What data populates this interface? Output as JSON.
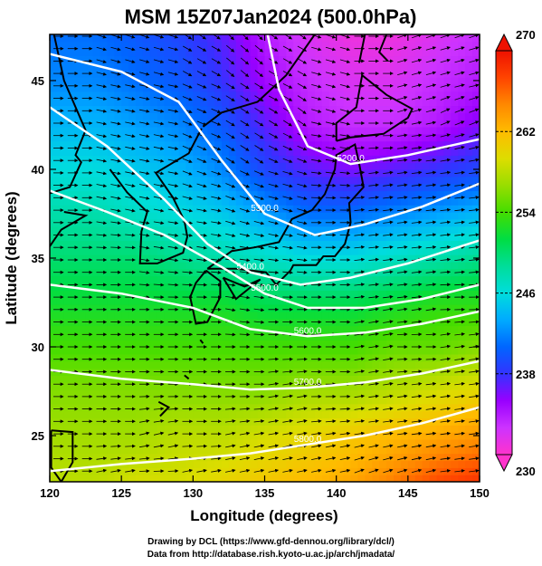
{
  "chart_data": {
    "type": "heatmap",
    "title": "MSM 15Z07Jan2024 (500.0hPa)",
    "xlabel": "Longitude (degrees)",
    "ylabel": "Latitude  (degrees)",
    "xlim": [
      120,
      150
    ],
    "ylim": [
      22.4,
      47.6
    ],
    "x_ticks": [
      120,
      125,
      130,
      135,
      140,
      145,
      150
    ],
    "y_ticks": [
      25,
      30,
      35,
      40,
      45
    ],
    "colorbar": {
      "min": 230,
      "max": 270,
      "ticks": [
        230,
        238,
        246,
        254,
        262,
        270
      ],
      "colors": [
        "#ff33cc",
        "#cc33ff",
        "#9900ff",
        "#3333ff",
        "#0066ff",
        "#00aaff",
        "#00dddd",
        "#00dd99",
        "#00dd44",
        "#44dd00",
        "#99dd00",
        "#dddd00",
        "#ffbb00",
        "#ff8800",
        "#ff4400",
        "#ee1100"
      ]
    },
    "temperature_field_K": [
      {
        "lat": 47.5,
        "values": [
          241,
          241,
          240,
          239,
          237,
          234,
          232,
          231,
          231,
          232,
          233
        ]
      },
      {
        "lat": 45,
        "values": [
          242,
          242,
          241,
          240,
          238,
          235,
          233,
          232,
          232,
          233,
          234
        ]
      },
      {
        "lat": 42.5,
        "values": [
          244,
          244,
          243,
          242,
          240,
          237,
          234,
          233,
          233,
          234,
          236
        ]
      },
      {
        "lat": 40,
        "values": [
          246,
          246,
          245,
          244,
          242,
          239,
          237,
          236,
          237,
          238,
          239
        ]
      },
      {
        "lat": 37.5,
        "values": [
          248,
          248,
          247,
          246,
          245,
          243,
          241,
          241,
          242,
          243,
          244
        ]
      },
      {
        "lat": 35,
        "values": [
          250,
          250,
          250,
          249,
          248,
          247,
          246,
          246,
          247,
          248,
          249
        ]
      },
      {
        "lat": 32.5,
        "values": [
          252,
          252,
          252,
          252,
          252,
          251,
          251,
          251,
          252,
          253,
          253
        ]
      },
      {
        "lat": 30,
        "values": [
          254,
          254,
          254,
          254,
          254,
          254,
          254,
          254,
          255,
          255,
          256
        ]
      },
      {
        "lat": 27.5,
        "values": [
          256,
          256,
          256,
          256,
          256,
          256,
          257,
          257,
          258,
          259,
          260
        ]
      },
      {
        "lat": 25,
        "values": [
          257,
          257,
          257,
          258,
          258,
          259,
          260,
          261,
          262,
          263,
          264
        ]
      },
      {
        "lat": 22.5,
        "values": [
          258,
          258,
          259,
          259,
          260,
          261,
          262,
          263,
          265,
          267,
          268
        ]
      }
    ],
    "field_lons": [
      120,
      123,
      126,
      129,
      132,
      135,
      138,
      141,
      144,
      147,
      150
    ],
    "contours": [
      {
        "label": "5200.0",
        "points": [
          [
            135,
            48.4
          ],
          [
            136,
            44.5
          ],
          [
            138,
            41.3
          ],
          [
            141,
            40.3
          ],
          [
            145,
            40.8
          ],
          [
            150,
            41.7
          ]
        ]
      },
      {
        "label": "5300.0",
        "points": [
          [
            120,
            46.5
          ],
          [
            125,
            45.5
          ],
          [
            129,
            43.8
          ],
          [
            132,
            40.5
          ],
          [
            135,
            37.5
          ],
          [
            138.5,
            36.3
          ],
          [
            142,
            36.9
          ],
          [
            146,
            37.9
          ],
          [
            150,
            39.2
          ]
        ]
      },
      {
        "label": "5400.0",
        "points": [
          [
            120,
            43.5
          ],
          [
            124,
            41.3
          ],
          [
            128,
            38.3
          ],
          [
            131,
            35.8
          ],
          [
            134,
            34.2
          ],
          [
            137.5,
            33.5
          ],
          [
            141,
            33.9
          ],
          [
            145,
            34.7
          ],
          [
            150,
            36.0
          ]
        ]
      },
      {
        "label": "5500.0",
        "points": [
          [
            120,
            38.8
          ],
          [
            124,
            37.6
          ],
          [
            128,
            36.3
          ],
          [
            132,
            34.5
          ],
          [
            135,
            33.0
          ],
          [
            138,
            32.2
          ],
          [
            142,
            32.2
          ],
          [
            146,
            32.7
          ],
          [
            150,
            33.5
          ]
        ]
      },
      {
        "label": "5600.0",
        "points": [
          [
            120,
            33.5
          ],
          [
            125,
            33.0
          ],
          [
            130,
            32.2
          ],
          [
            134,
            31.0
          ],
          [
            138,
            30.6
          ],
          [
            142,
            30.8
          ],
          [
            146,
            31.3
          ],
          [
            150,
            32.0
          ]
        ]
      },
      {
        "label": "5700.0",
        "points": [
          [
            120,
            28.7
          ],
          [
            125,
            28.2
          ],
          [
            130,
            27.9
          ],
          [
            134,
            27.6
          ],
          [
            138,
            27.7
          ],
          [
            142,
            28.0
          ],
          [
            146,
            28.5
          ],
          [
            150,
            29.2
          ]
        ]
      },
      {
        "label": "5800.0",
        "points": [
          [
            120,
            23.0
          ],
          [
            125,
            23.4
          ],
          [
            130,
            23.7
          ],
          [
            134,
            24.0
          ],
          [
            138,
            24.5
          ],
          [
            142,
            25.0
          ],
          [
            146,
            25.7
          ],
          [
            150,
            26.6
          ]
        ]
      }
    ],
    "coastline_lonlat": [
      [
        [
          120.3,
          47.6
        ],
        [
          121.0,
          45.0
        ],
        [
          122.5,
          42.2
        ],
        [
          121.8,
          40.8
        ],
        [
          122.2,
          40.4
        ],
        [
          121.4,
          39.0
        ],
        [
          119.8,
          38.6
        ]
      ],
      [
        [
          121.0,
          37.6
        ],
        [
          122.5,
          37.4
        ],
        [
          120.8,
          36.6
        ],
        [
          119.6,
          35.2
        ]
      ],
      [
        [
          124.2,
          40.0
        ],
        [
          125.4,
          38.7
        ],
        [
          126.8,
          37.6
        ],
        [
          126.4,
          36.5
        ],
        [
          126.3,
          34.7
        ],
        [
          127.5,
          34.7
        ],
        [
          129.3,
          35.3
        ],
        [
          129.6,
          36.2
        ],
        [
          129.4,
          37.1
        ],
        [
          128.6,
          38.4
        ],
        [
          127.4,
          39.8
        ],
        [
          129.7,
          40.9
        ],
        [
          130.6,
          42.3
        ]
      ],
      [
        [
          130.7,
          42.4
        ],
        [
          132.0,
          43.2
        ],
        [
          134.5,
          43.8
        ],
        [
          136.5,
          45.3
        ],
        [
          138.5,
          47.6
        ]
      ],
      [
        [
          130.9,
          34.3
        ],
        [
          130.2,
          33.6
        ],
        [
          129.8,
          32.8
        ],
        [
          130.2,
          31.3
        ],
        [
          131.0,
          31.4
        ],
        [
          131.9,
          32.8
        ],
        [
          131.9,
          33.7
        ],
        [
          130.9,
          34.3
        ]
      ],
      [
        [
          131.0,
          34.4
        ],
        [
          132.7,
          35.4
        ],
        [
          134.3,
          35.6
        ],
        [
          136.0,
          35.9
        ],
        [
          136.9,
          37.2
        ],
        [
          138.3,
          37.7
        ],
        [
          139.2,
          38.6
        ],
        [
          139.9,
          40.0
        ],
        [
          140.0,
          40.8
        ],
        [
          141.3,
          41.4
        ],
        [
          141.6,
          40.3
        ],
        [
          141.9,
          39.0
        ],
        [
          140.9,
          38.1
        ],
        [
          141.0,
          37.0
        ],
        [
          140.6,
          35.8
        ],
        [
          139.9,
          35.1
        ],
        [
          139.1,
          35.1
        ],
        [
          138.6,
          34.6
        ],
        [
          137.0,
          34.6
        ],
        [
          136.8,
          34.3
        ],
        [
          135.8,
          33.5
        ],
        [
          135.1,
          34.2
        ],
        [
          133.0,
          34.4
        ],
        [
          131.0,
          34.4
        ]
      ],
      [
        [
          132.1,
          33.9
        ],
        [
          133.6,
          33.4
        ],
        [
          134.7,
          33.8
        ],
        [
          133.0,
          32.7
        ],
        [
          132.1,
          33.9
        ]
      ],
      [
        [
          140.0,
          41.6
        ],
        [
          140.0,
          42.6
        ],
        [
          141.4,
          43.5
        ],
        [
          141.8,
          45.3
        ],
        [
          143.5,
          44.2
        ],
        [
          145.3,
          43.4
        ],
        [
          145.0,
          42.9
        ],
        [
          143.3,
          42.0
        ],
        [
          141.0,
          41.8
        ],
        [
          140.0,
          41.6
        ]
      ],
      [
        [
          141.6,
          46.0
        ],
        [
          142.0,
          47.6
        ]
      ],
      [
        [
          143.5,
          47.6
        ],
        [
          143.0,
          46.6
        ],
        [
          143.6,
          46.1
        ]
      ],
      [
        [
          120.1,
          25.3
        ],
        [
          121.6,
          25.2
        ],
        [
          121.6,
          23.5
        ],
        [
          120.8,
          22.4
        ],
        [
          120.1,
          23.2
        ],
        [
          120.1,
          25.3
        ]
      ],
      [
        [
          127.6,
          26.9
        ],
        [
          128.3,
          26.6
        ],
        [
          127.7,
          26.1
        ]
      ],
      [
        [
          129.4,
          28.4
        ],
        [
          129.7,
          28.2
        ]
      ],
      [
        [
          130.5,
          30.4
        ],
        [
          130.7,
          30.2
        ]
      ]
    ],
    "wind": "westerly-to-southwesterly flow vectors with streamlines across domain"
  },
  "credits": {
    "line1": "Drawing by DCL (https://www.gfd-dennou.org/library/dcl/)",
    "line2": "Data from http://database.rish.kyoto-u.ac.jp/arch/jmadata/"
  }
}
